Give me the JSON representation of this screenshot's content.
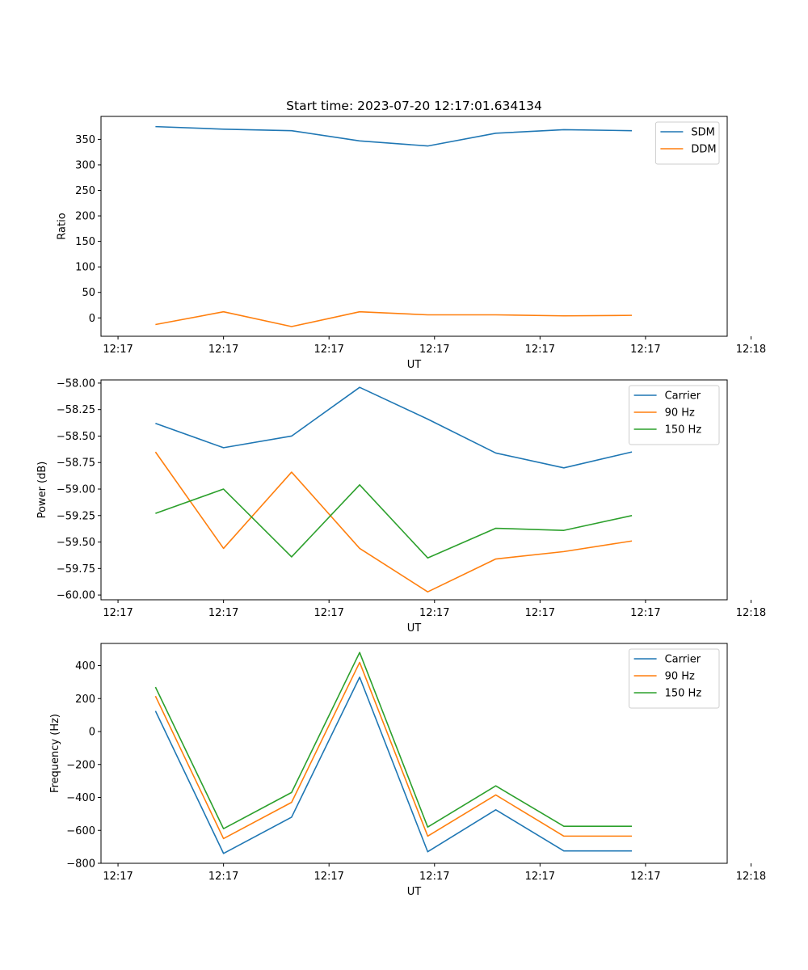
{
  "figure": {
    "title": "Start time: 2023-07-20 12:17:01.634134"
  },
  "chart_data": [
    {
      "type": "line",
      "title": "Start time: 2023-07-20 12:17:01.634134",
      "xlabel": "UT",
      "ylabel": "Ratio",
      "x": [
        1,
        2,
        3,
        4,
        5,
        6,
        7,
        8
      ],
      "xlim": [
        0.2,
        9.4
      ],
      "x_ticks": [
        0.45,
        2.0,
        3.55,
        5.1,
        6.65,
        8.2,
        9.75
      ],
      "x_tick_labels": [
        "12:17",
        "12:17",
        "12:17",
        "12:17",
        "12:17",
        "12:17",
        "12:18"
      ],
      "ylim": [
        -36,
        395
      ],
      "y_ticks": [
        0,
        50,
        100,
        150,
        200,
        250,
        300,
        350
      ],
      "y_tick_labels": [
        "0",
        "50",
        "100",
        "150",
        "200",
        "250",
        "300",
        "350"
      ],
      "legend_position": "top-right",
      "series": [
        {
          "name": "SDM",
          "color": "#1f77b4",
          "values": [
            375,
            370,
            367,
            347,
            337,
            362,
            369,
            367
          ]
        },
        {
          "name": "DDM",
          "color": "#ff7f0e",
          "values": [
            -13,
            12,
            -17,
            12,
            6,
            6,
            4,
            5
          ]
        }
      ]
    },
    {
      "type": "line",
      "title": "",
      "xlabel": "UT",
      "ylabel": "Power (dB)",
      "x": [
        1,
        2,
        3,
        4,
        5,
        6,
        7,
        8
      ],
      "xlim": [
        0.2,
        9.4
      ],
      "x_ticks": [
        0.45,
        2.0,
        3.55,
        5.1,
        6.65,
        8.2,
        9.75
      ],
      "x_tick_labels": [
        "12:17",
        "12:17",
        "12:17",
        "12:17",
        "12:17",
        "12:17",
        "12:18"
      ],
      "ylim": [
        -60.045,
        -57.97
      ],
      "y_ticks": [
        -60.0,
        -59.75,
        -59.5,
        -59.25,
        -59.0,
        -58.75,
        -58.5,
        -58.25,
        -58.0
      ],
      "y_tick_labels": [
        "−60.00",
        "−59.75",
        "−59.50",
        "−59.25",
        "−59.00",
        "−58.75",
        "−58.50",
        "−58.25",
        "−58.00"
      ],
      "legend_position": "top-right",
      "series": [
        {
          "name": "Carrier",
          "color": "#1f77b4",
          "values": [
            -58.38,
            -58.61,
            -58.5,
            -58.04,
            -58.34,
            -58.66,
            -58.8,
            -58.65
          ]
        },
        {
          "name": "90 Hz",
          "color": "#ff7f0e",
          "values": [
            -58.65,
            -59.56,
            -58.84,
            -59.56,
            -59.97,
            -59.66,
            -59.59,
            -59.49
          ]
        },
        {
          "name": "150 Hz",
          "color": "#2ca02c",
          "values": [
            -59.23,
            -59.0,
            -59.64,
            -58.96,
            -59.65,
            -59.37,
            -59.39,
            -59.25
          ]
        }
      ]
    },
    {
      "type": "line",
      "title": "",
      "xlabel": "UT",
      "ylabel": "Frequency (Hz)",
      "x": [
        1,
        2,
        3,
        4,
        5,
        6,
        7,
        8
      ],
      "xlim": [
        0.2,
        9.4
      ],
      "x_ticks": [
        0.45,
        2.0,
        3.55,
        5.1,
        6.65,
        8.2,
        9.75
      ],
      "x_tick_labels": [
        "12:17",
        "12:17",
        "12:17",
        "12:17",
        "12:17",
        "12:17",
        "12:18"
      ],
      "ylim": [
        -800,
        535
      ],
      "y_ticks": [
        -800,
        -600,
        -400,
        -200,
        0,
        200,
        400
      ],
      "y_tick_labels": [
        "−800",
        "−600",
        "−400",
        "−200",
        "0",
        "200",
        "400"
      ],
      "legend_position": "top-right",
      "series": [
        {
          "name": "Carrier",
          "color": "#1f77b4",
          "values": [
            125,
            -740,
            -520,
            330,
            -730,
            -475,
            -725,
            -725
          ]
        },
        {
          "name": "90 Hz",
          "color": "#ff7f0e",
          "values": [
            215,
            -650,
            -430,
            420,
            -635,
            -385,
            -635,
            -635
          ]
        },
        {
          "name": "150 Hz",
          "color": "#2ca02c",
          "values": [
            270,
            -590,
            -370,
            480,
            -580,
            -330,
            -575,
            -575
          ]
        }
      ]
    }
  ]
}
